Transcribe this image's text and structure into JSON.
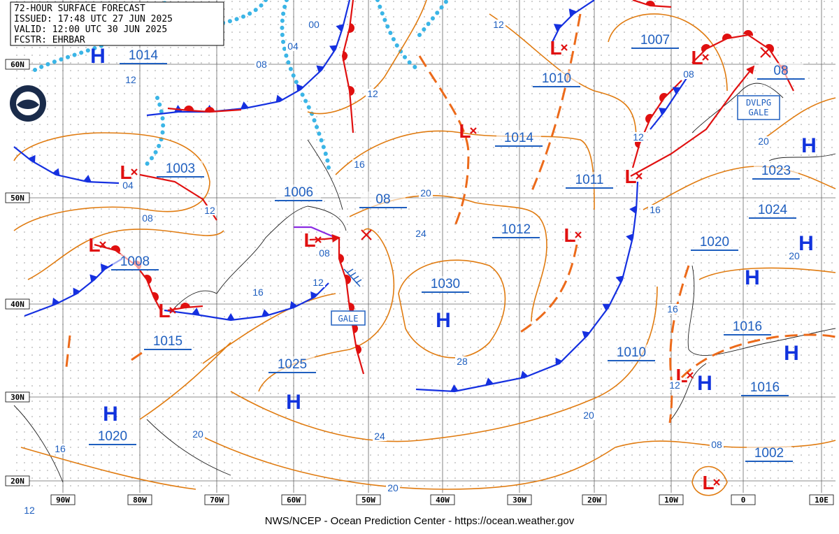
{
  "header": {
    "lines": [
      "72-HOUR SURFACE FORECAST",
      "ISSUED: 17:48 UTC 27 JUN 2025",
      "VALID: 12:00 UTC 30 JUN 2025",
      "FCSTR: EHRBAR"
    ]
  },
  "latitude_labels": [
    "60N",
    "50N",
    "40N",
    "30N",
    "20N"
  ],
  "longitude_labels": [
    "90W",
    "80W",
    "70W",
    "60W",
    "50W",
    "40W",
    "30W",
    "20W",
    "10W",
    "0",
    "10E"
  ],
  "pressure_labels": [
    "1014",
    "1003",
    "1006",
    "08",
    "1008",
    "1015",
    "1025",
    "1030",
    "1012",
    "1014",
    "1010",
    "1011",
    "1007",
    "08",
    "1023",
    "1024",
    "1020",
    "1016",
    "1010",
    "1016",
    "1020",
    "1002"
  ],
  "highs": [
    "H",
    "H",
    "H",
    "H",
    "H",
    "H",
    "H",
    "H",
    "H"
  ],
  "lows": [
    "L",
    "L",
    "L",
    "L",
    "L",
    "L",
    "L",
    "L",
    "L",
    "L",
    "L"
  ],
  "isobar_labels": [
    "00",
    "04",
    "08",
    "12",
    "12",
    "12",
    "16",
    "20",
    "24",
    "08",
    "12",
    "04",
    "08",
    "12",
    "16",
    "08",
    "12",
    "16",
    "20",
    "20",
    "16",
    "12",
    "28",
    "24",
    "20",
    "16",
    "20",
    "08",
    "20",
    "12"
  ],
  "annotations": {
    "gale": "GALE",
    "developing_gale": [
      "DVLPG",
      "GALE"
    ]
  },
  "footer": "NWS/NCEP - Ocean Prediction Center - https://ocean.weather.gov"
}
